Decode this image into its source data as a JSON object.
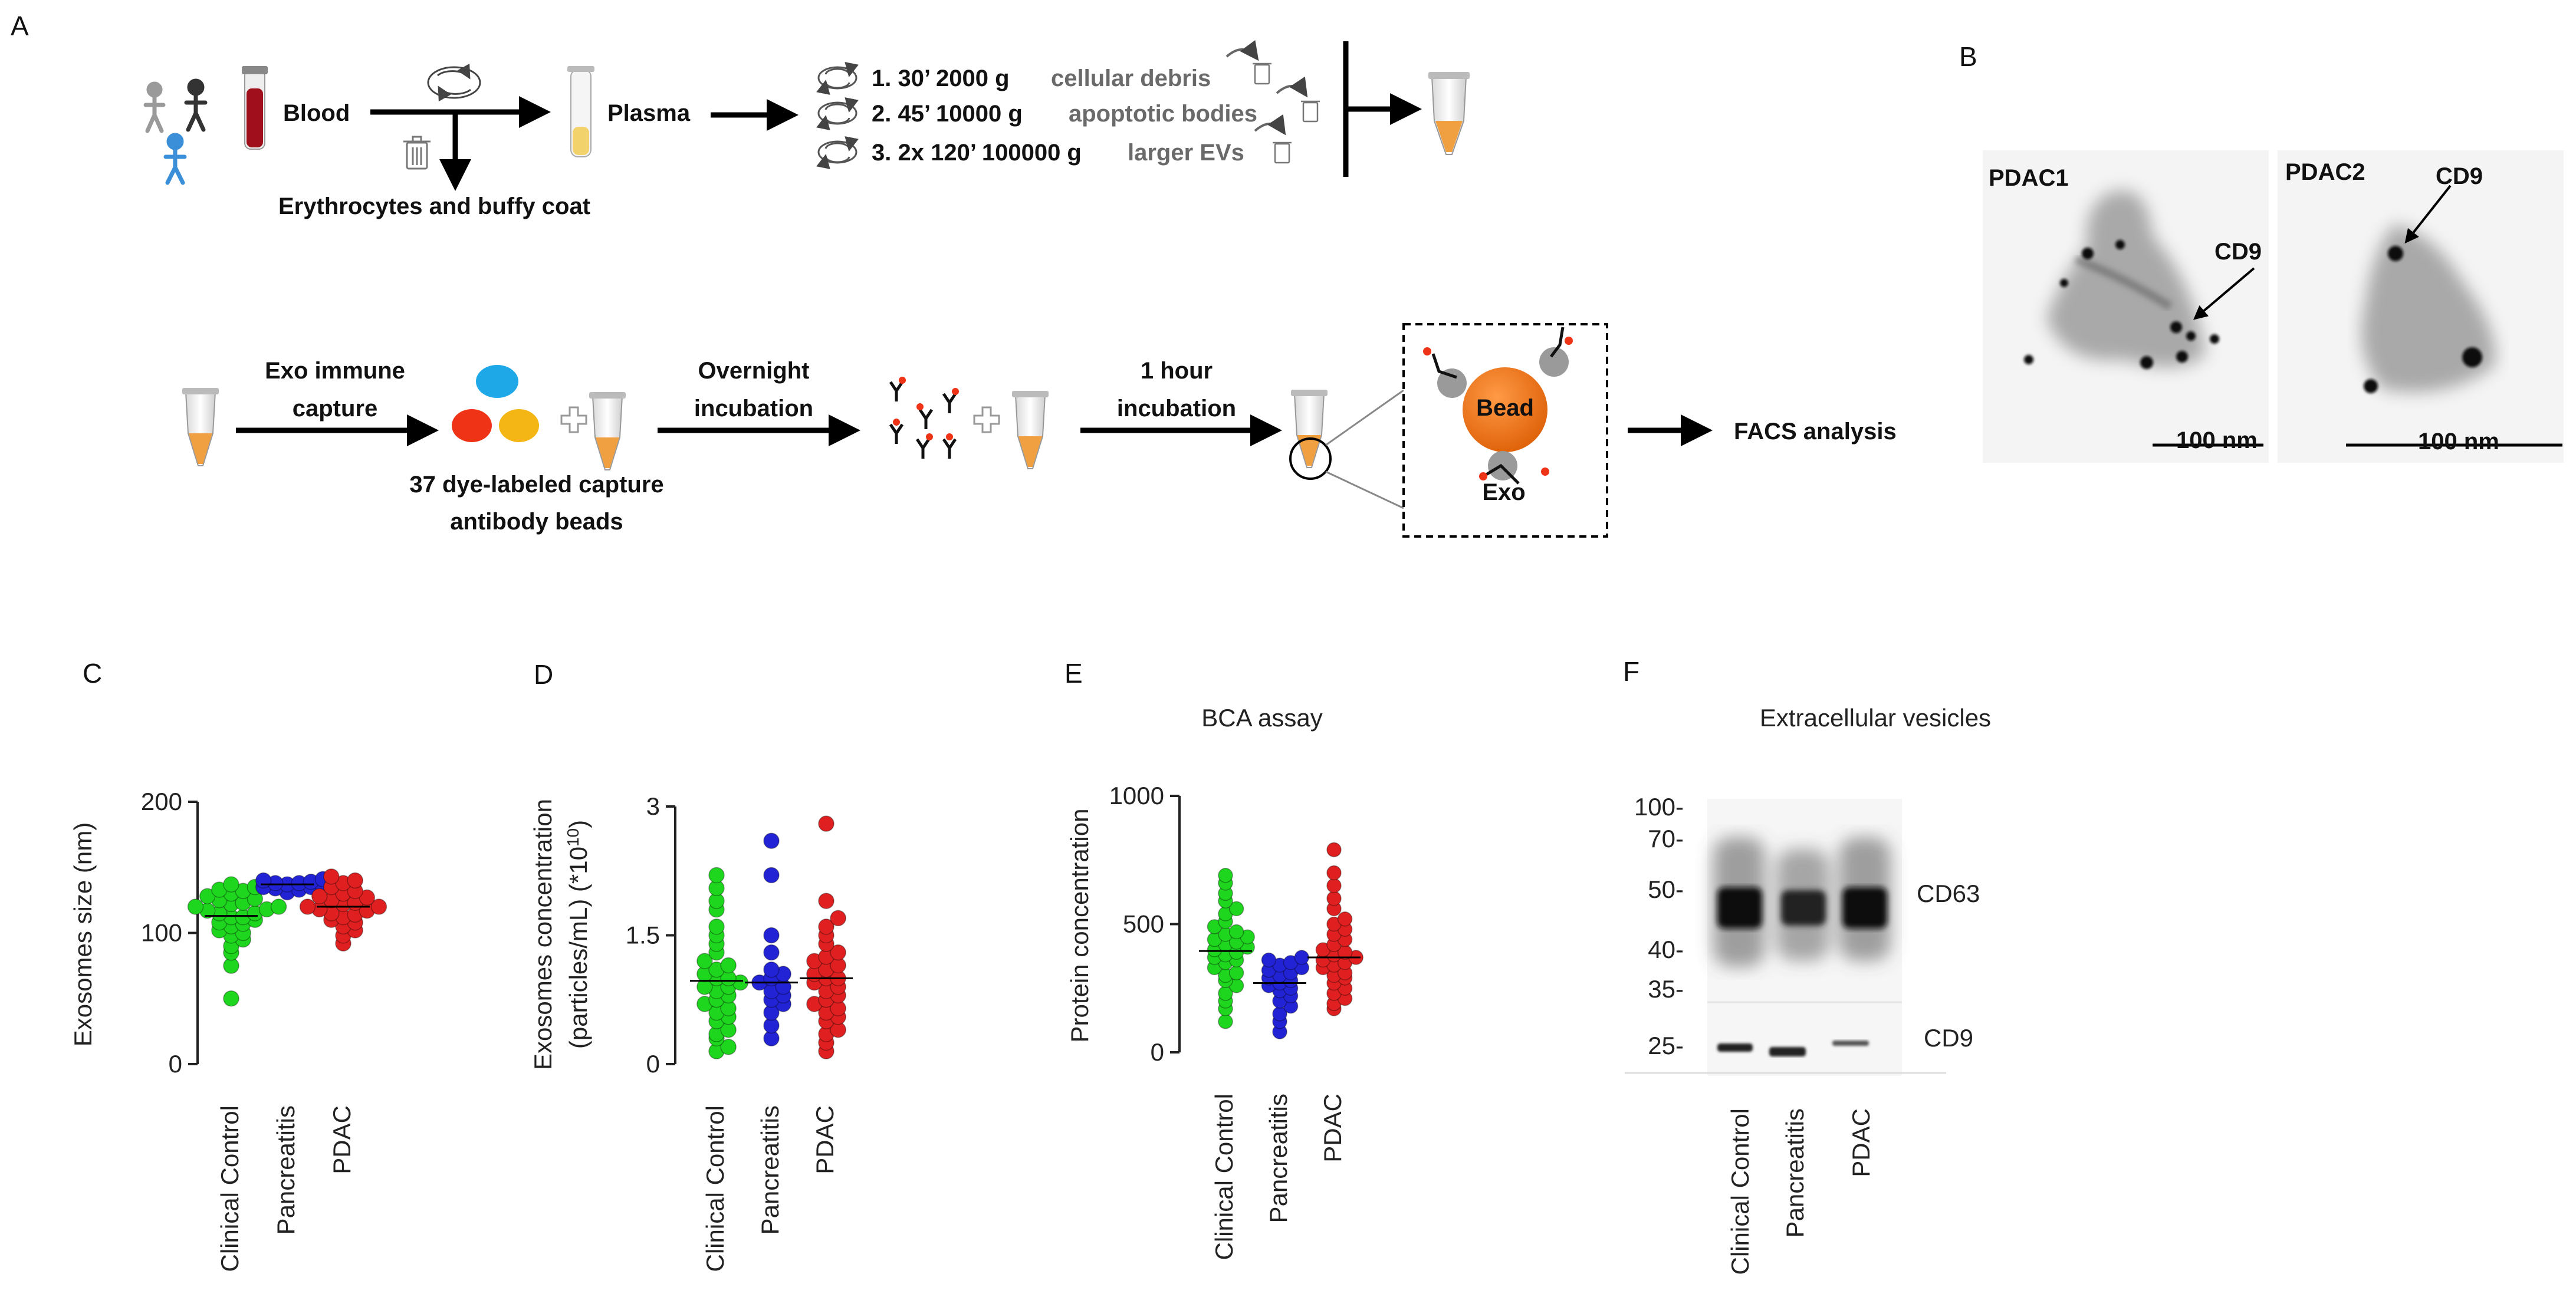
{
  "panel_labels": {
    "a": "A",
    "b": "B",
    "c": "C",
    "d": "D",
    "e": "E",
    "f": "F"
  },
  "workflow": {
    "blood": "Blood",
    "plasma": "Plasma",
    "erythro": "Erythrocytes and buffy coat",
    "steps": [
      {
        "num": "1. 30’ 2000 g",
        "what": "cellular debris"
      },
      {
        "num": "2. 45’ 10000 g",
        "what": "apoptotic bodies"
      },
      {
        "num": "3. 2x 120’ 100000 g",
        "what": "larger EVs"
      }
    ],
    "exo_capture": [
      "Exo immune",
      "capture"
    ],
    "beads_label": [
      "37 dye-labeled capture",
      "antibody beads"
    ],
    "overnight": [
      "Overnight",
      "incubation"
    ],
    "one_hour": [
      "1 hour",
      "incubation"
    ],
    "bead": "Bead",
    "exo": "Exo",
    "facs": "FACS analysis"
  },
  "em": {
    "p1_label": "PDAC1",
    "p2_label": "PDAC2",
    "cd9": "CD9",
    "scale": "100 nm"
  },
  "colors": {
    "control": "#1fd61f",
    "pancreatitis": "#2323d6",
    "pdac": "#e02020",
    "tube": "#f0a040",
    "bead": "#f27a1e"
  },
  "categories": [
    "Clinical Control",
    "Pancreatitis",
    "PDAC"
  ],
  "chart_data": [
    {
      "panel": "C",
      "type": "scatter",
      "ylabel": "Exosomes size (nm)",
      "ylim": [
        0,
        200
      ],
      "yticks": [
        "0",
        "100",
        "200"
      ],
      "categories": [
        "Clinical Control",
        "Pancreatitis",
        "PDAC"
      ],
      "series": [
        {
          "name": "Clinical Control",
          "values": [
            50,
            75,
            85,
            90,
            95,
            98,
            100,
            102,
            105,
            107,
            108,
            110,
            112,
            112,
            115,
            115,
            117,
            118,
            120,
            120,
            122,
            123,
            125,
            126,
            128,
            130,
            132,
            133,
            135,
            137
          ],
          "mean": 113
        },
        {
          "name": "Pancreatitis",
          "values": [
            131,
            133,
            134,
            135,
            135,
            136,
            137,
            138,
            138,
            139,
            140,
            141
          ],
          "mean": 137
        },
        {
          "name": "PDAC",
          "values": [
            92,
            98,
            102,
            105,
            108,
            110,
            112,
            114,
            115,
            117,
            118,
            120,
            120,
            122,
            123,
            125,
            127,
            128,
            130,
            132,
            135,
            138,
            140,
            143
          ],
          "mean": 120
        }
      ]
    },
    {
      "panel": "D",
      "type": "scatter",
      "ylabel": "Exosomes concentration",
      "ylabel2": "(particles/mL) (*10",
      "ylabel_sup": "10",
      "ylabel_end": ")",
      "ylim": [
        0,
        3
      ],
      "yticks": [
        "0",
        "1.5",
        "3"
      ],
      "categories": [
        "Clinical Control",
        "Pancreatitis",
        "PDAC"
      ],
      "series": [
        {
          "name": "Clinical Control",
          "values": [
            0.15,
            0.2,
            0.3,
            0.35,
            0.4,
            0.5,
            0.55,
            0.6,
            0.65,
            0.7,
            0.75,
            0.8,
            0.85,
            0.9,
            0.9,
            0.95,
            1.0,
            1.0,
            1.05,
            1.1,
            1.15,
            1.2,
            1.3,
            1.4,
            1.5,
            1.6,
            1.8,
            1.9,
            2.05,
            2.2
          ],
          "mean": 0.97
        },
        {
          "name": "Pancreatitis",
          "values": [
            0.3,
            0.45,
            0.6,
            0.7,
            0.75,
            0.8,
            0.85,
            0.9,
            0.95,
            1.0,
            1.05,
            1.1,
            1.3,
            1.5,
            2.2,
            2.6
          ],
          "mean": 0.95
        },
        {
          "name": "PDAC",
          "values": [
            0.15,
            0.25,
            0.35,
            0.4,
            0.5,
            0.55,
            0.6,
            0.65,
            0.7,
            0.75,
            0.8,
            0.85,
            0.9,
            0.95,
            1.0,
            1.0,
            1.05,
            1.1,
            1.15,
            1.2,
            1.25,
            1.3,
            1.4,
            1.5,
            1.6,
            1.7,
            1.9,
            2.8
          ],
          "mean": 1.0
        }
      ]
    },
    {
      "panel": "E",
      "type": "scatter",
      "title": "BCA assay",
      "ylabel": "Protein concentration",
      "ylim": [
        0,
        1000
      ],
      "yticks": [
        "0",
        "500",
        "1000"
      ],
      "categories": [
        "Clinical Control",
        "Pancreatitis",
        "PDAC"
      ],
      "series": [
        {
          "name": "Clinical Control",
          "values": [
            120,
            170,
            200,
            230,
            260,
            280,
            300,
            310,
            330,
            350,
            360,
            370,
            380,
            390,
            400,
            410,
            420,
            430,
            440,
            450,
            460,
            470,
            490,
            510,
            540,
            560,
            590,
            620,
            660,
            690
          ],
          "mean": 395
        },
        {
          "name": "Pancreatitis",
          "values": [
            80,
            120,
            150,
            180,
            200,
            220,
            240,
            250,
            260,
            270,
            280,
            290,
            300,
            310,
            320,
            330,
            340,
            350,
            360,
            370
          ],
          "mean": 270
        },
        {
          "name": "PDAC",
          "values": [
            170,
            190,
            210,
            230,
            250,
            270,
            290,
            300,
            310,
            330,
            340,
            350,
            360,
            370,
            380,
            390,
            400,
            420,
            440,
            460,
            480,
            500,
            520,
            560,
            600,
            650,
            700,
            790
          ],
          "mean": 370
        }
      ]
    }
  ],
  "blot": {
    "title": "Extracellular vesicles",
    "markers": [
      "100-",
      "70-",
      "50-",
      "40-",
      "35-",
      "25-"
    ],
    "band_labels": [
      "CD63",
      "CD9"
    ]
  }
}
